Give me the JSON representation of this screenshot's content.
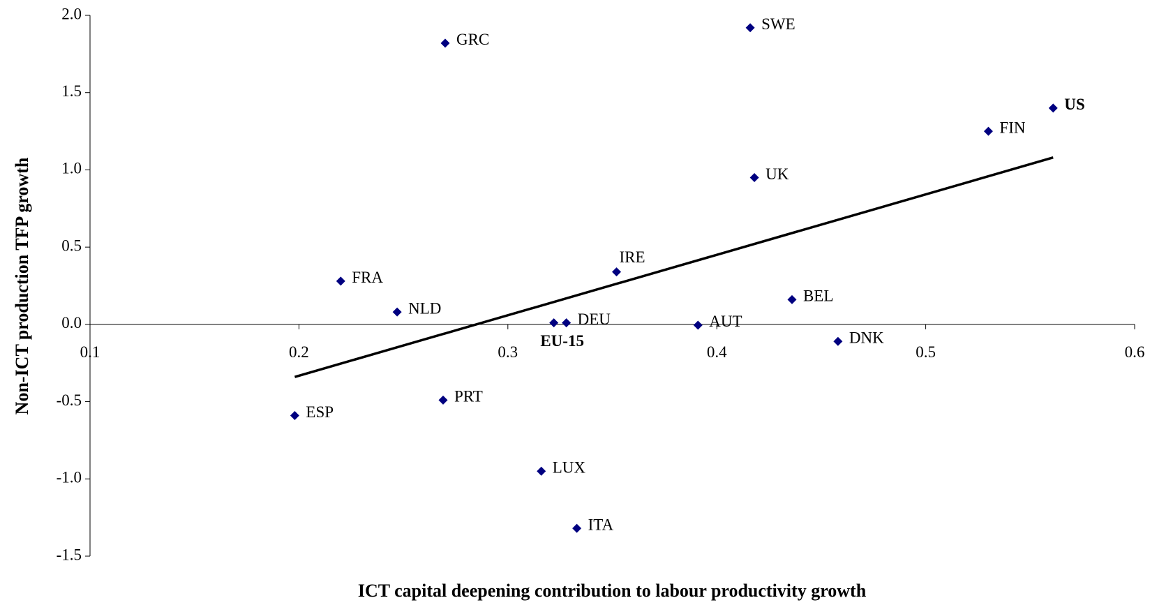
{
  "chart_data": {
    "type": "scatter",
    "x_label": "ICT capital deepening contribution to labour productivity growth",
    "y_label": "Non-ICT production TFP growth",
    "xlim": [
      0.1,
      0.6
    ],
    "ylim": [
      -1.5,
      2.0
    ],
    "xticks": [
      0.1,
      0.2,
      0.3,
      0.4,
      0.5,
      0.6
    ],
    "yticks": [
      {
        "value": 2.0,
        "label": "2.0"
      },
      {
        "value": 1.5,
        "label": "1.5"
      },
      {
        "value": 1.0,
        "label": "1.0"
      },
      {
        "value": 0.5,
        "label": "0.5"
      },
      {
        "value": 0.0,
        "label": "0.0"
      },
      {
        "value": -0.5,
        "label": "-0.5"
      },
      {
        "value": -1.0,
        "label": "-1.0"
      },
      {
        "value": -1.5,
        "label": "-1.5"
      }
    ],
    "grid": false,
    "color": "#000080",
    "labels": [
      "GRC",
      "SWE",
      "US",
      "FIN",
      "UK",
      "IRE",
      "FRA",
      "NLD",
      "BEL",
      "DEU",
      "EU-15",
      "AUT",
      "DNK",
      "PRT",
      "ESP",
      "LUX",
      "ITA"
    ],
    "label_bold": [
      false,
      false,
      true,
      false,
      false,
      false,
      false,
      false,
      false,
      false,
      true,
      false,
      false,
      false,
      false,
      false,
      false
    ],
    "x": [
      0.27,
      0.416,
      0.561,
      0.53,
      0.418,
      0.352,
      0.22,
      0.247,
      0.436,
      0.328,
      0.322,
      0.391,
      0.458,
      0.269,
      0.198,
      0.316,
      0.333
    ],
    "y": [
      1.82,
      1.92,
      1.4,
      1.25,
      0.95,
      0.34,
      0.28,
      0.08,
      0.16,
      0.01,
      0.01,
      -0.005,
      -0.11,
      -0.49,
      -0.59,
      -0.95,
      -1.32
    ],
    "trendline": {
      "x": [
        0.198,
        0.561
      ],
      "y": [
        -0.34,
        1.08
      ]
    }
  }
}
